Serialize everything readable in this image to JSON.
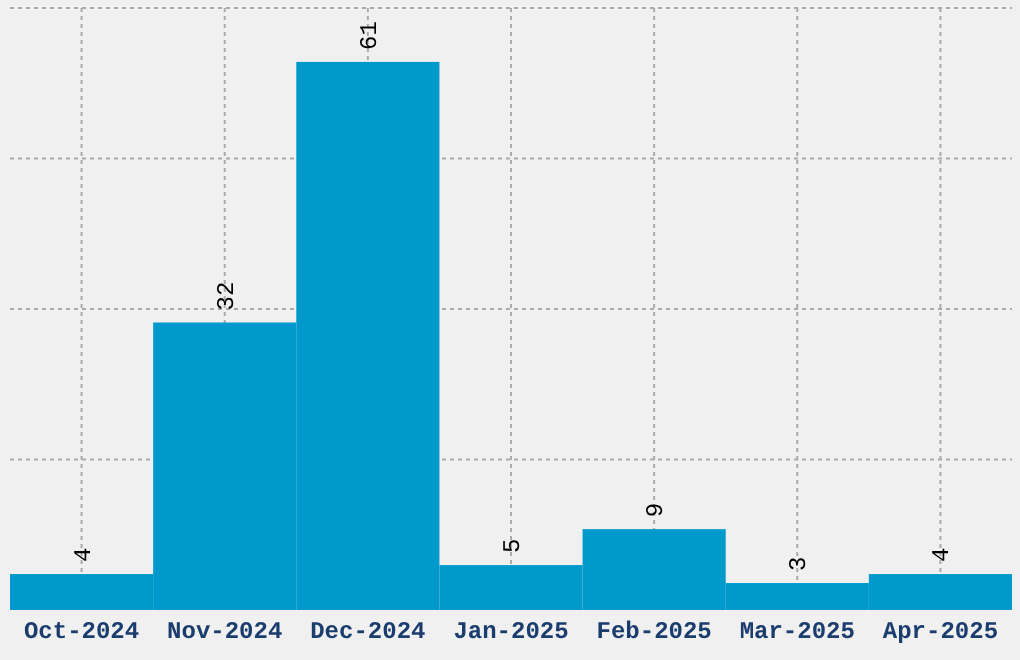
{
  "chart_data": {
    "type": "bar",
    "categories": [
      "Oct-2024",
      "Nov-2024",
      "Dec-2024",
      "Jan-2025",
      "Feb-2025",
      "Mar-2025",
      "Apr-2025"
    ],
    "values": [
      4,
      32,
      61,
      5,
      9,
      3,
      4
    ],
    "color": "#0099cc",
    "ylim": [
      0,
      67
    ],
    "yticks": [
      {
        "value": 16.75,
        "label": null
      },
      {
        "value": 33.5,
        "label": null
      },
      {
        "value": 50.25,
        "label": null
      },
      {
        "value": 67,
        "label": null
      }
    ],
    "grid": true,
    "tick_labels": "x",
    "data_labels": true
  }
}
